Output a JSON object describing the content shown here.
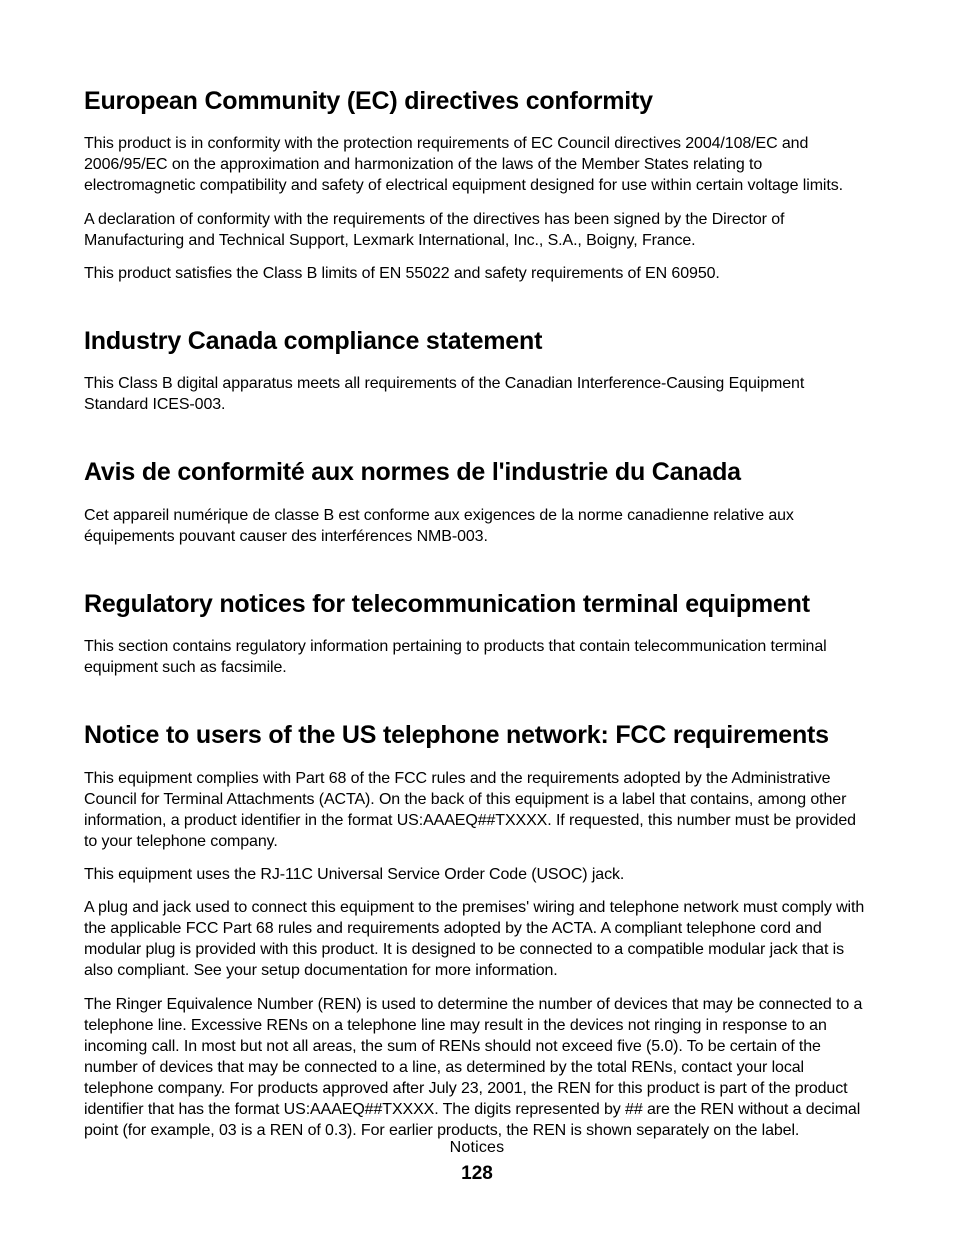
{
  "sections": [
    {
      "heading": "European Community (EC) directives conformity",
      "paragraphs": [
        "This product is in conformity with the protection requirements of EC Council directives 2004/108/EC and 2006/95/EC on the approximation and harmonization of the laws of the Member States relating to electromagnetic compatibility and safety of electrical equipment designed for use within certain voltage limits.",
        "A declaration of conformity with the requirements of the directives has been signed by the Director of Manufacturing and Technical Support, Lexmark International, Inc., S.A., Boigny, France.",
        "This product satisfies the Class B limits of EN 55022 and safety requirements of EN 60950."
      ]
    },
    {
      "heading": "Industry Canada compliance statement",
      "paragraphs": [
        "This Class B digital apparatus meets all requirements of the Canadian Interference-Causing Equipment Standard ICES-003."
      ]
    },
    {
      "heading": "Avis de conformité aux normes de l'industrie du Canada",
      "paragraphs": [
        "Cet appareil numérique de classe B est conforme aux exigences de la norme canadienne relative aux équipements pouvant causer des interférences NMB-003."
      ]
    },
    {
      "heading": "Regulatory notices for telecommunication terminal equipment",
      "paragraphs": [
        "This section contains regulatory information pertaining to products that contain telecommunication terminal equipment such as facsimile."
      ]
    },
    {
      "heading": "Notice to users of the US telephone network: FCC requirements",
      "paragraphs": [
        "This equipment complies with Part 68 of the FCC rules and the requirements adopted by the Administrative Council for Terminal Attachments (ACTA). On the back of this equipment is a label that contains, among other information, a product identifier in the format US:AAAEQ##TXXXX. If requested, this number must be provided to your telephone company.",
        "This equipment uses the RJ-11C Universal Service Order Code (USOC) jack.",
        "A plug and jack used to connect this equipment to the premises' wiring and telephone network must comply with the applicable FCC Part 68 rules and requirements adopted by the ACTA. A compliant telephone cord and modular plug is provided with this product. It is designed to be connected to a compatible modular jack that is also compliant. See your setup documentation for more information.",
        "The Ringer Equivalence Number (REN) is used to determine the number of devices that may be connected to a telephone line. Excessive RENs on a telephone line may result in the devices not ringing in response to an incoming call. In most but not all areas, the sum of RENs should not exceed five (5.0). To be certain of the number of devices that may be connected to a line, as determined by the total RENs, contact your local telephone company. For products approved after July 23, 2001, the REN for this product is part of the product identifier that has the format US:AAAEQ##TXXXX. The digits represented by ## are the REN without a decimal point (for example, 03 is a REN of 0.3). For earlier products, the REN is shown separately on the label."
      ]
    }
  ],
  "footer": {
    "label": "Notices",
    "page": "128"
  }
}
